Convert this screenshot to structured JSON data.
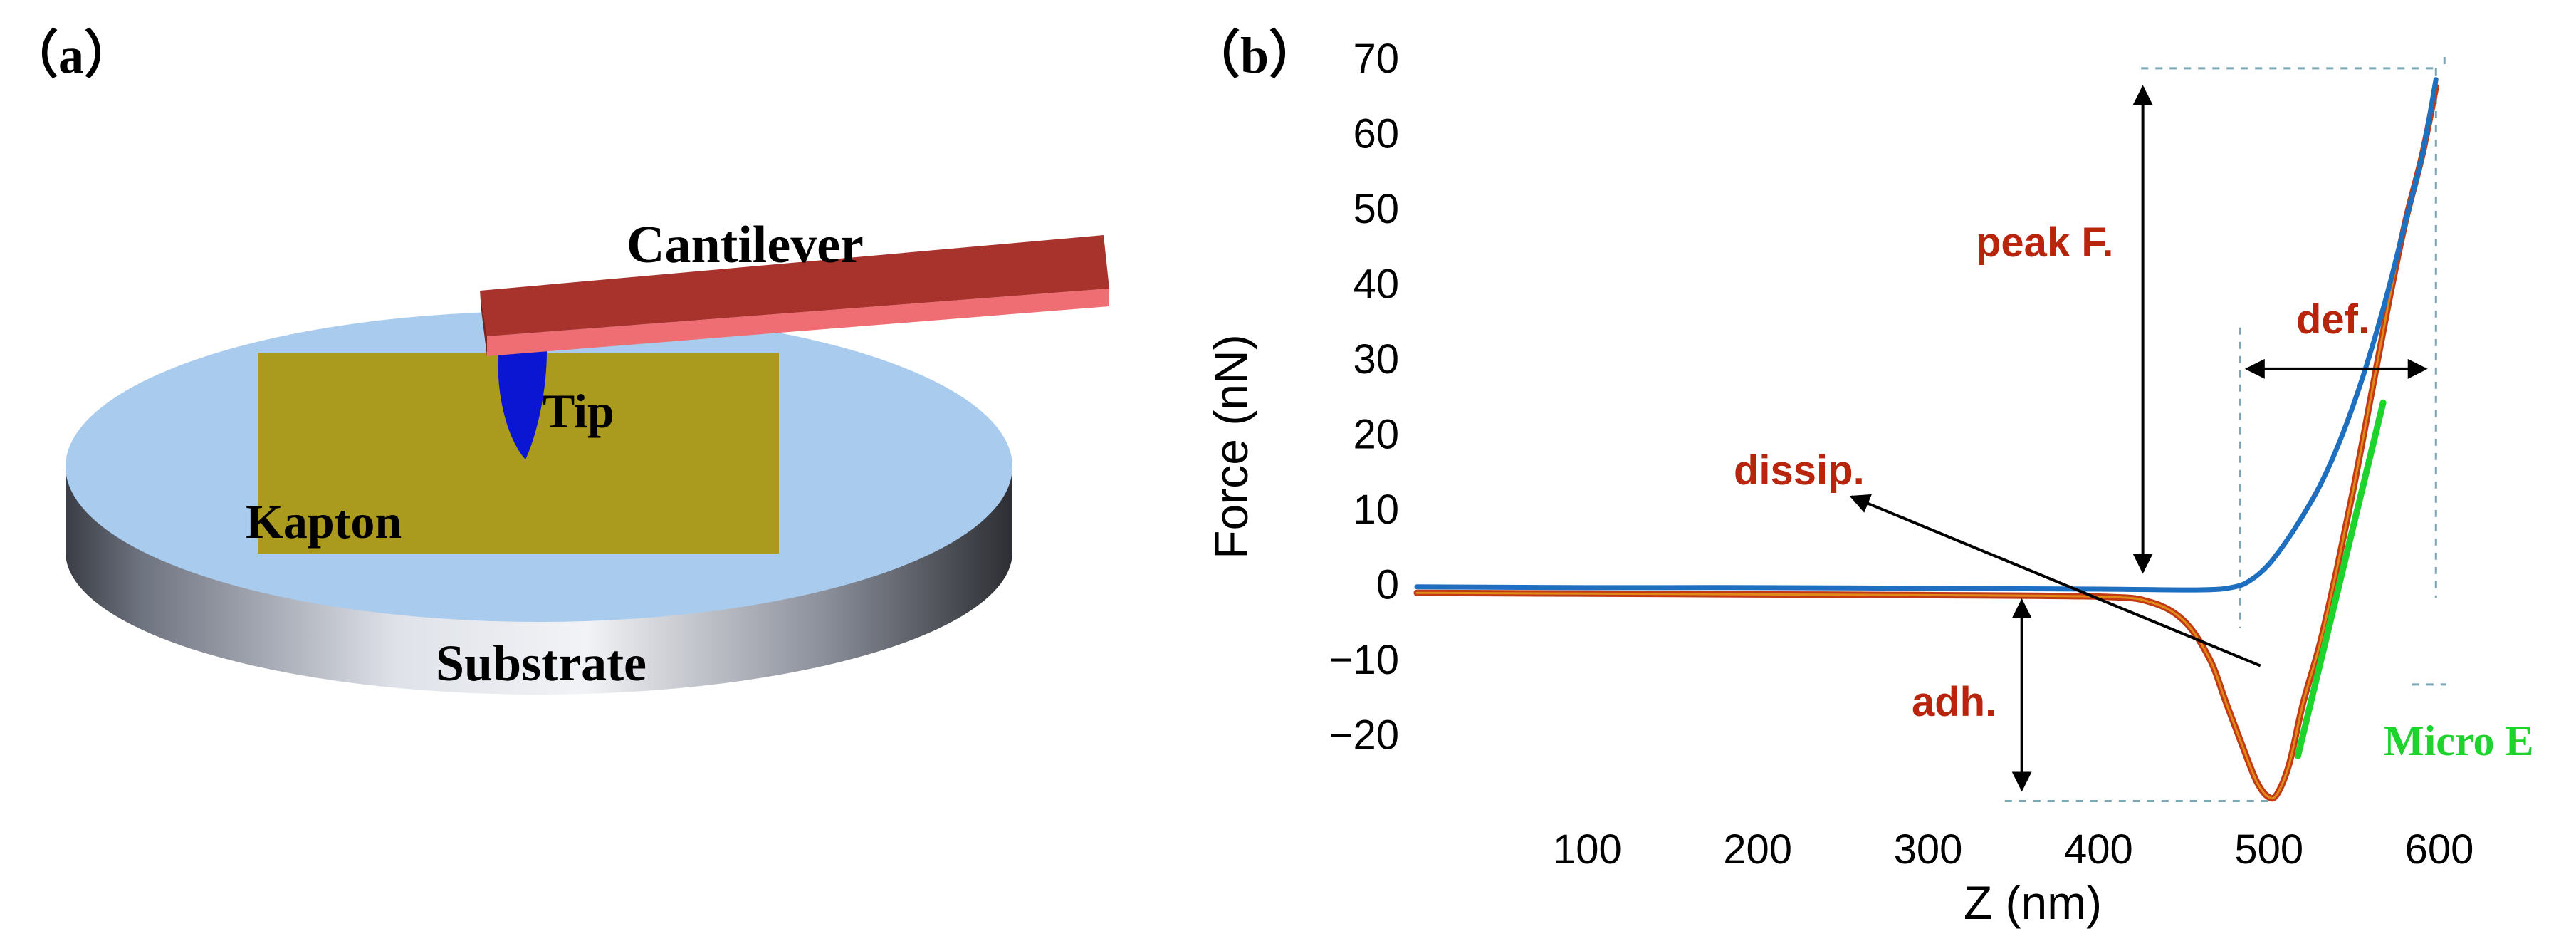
{
  "panel_a": {
    "label": "（a）",
    "cantilever_label": "Cantilever",
    "tip_label": "Tip",
    "sample_label": "Kapton",
    "substrate_label": "Substrate",
    "colors": {
      "substrate_top": "#a9cbee",
      "substrate_side_dark": "#3a3d44",
      "substrate_side_light": "#e6e8ee",
      "sample": "#aa9a1e",
      "cantilever_top": "#a8322c",
      "cantilever_edge": "#ee6e74",
      "tip": "#0a16d2"
    }
  },
  "panel_b": {
    "label": "（b）",
    "annotations": {
      "peak": "peak F.",
      "def": "def.",
      "dissip": "dissip.",
      "adh": "adh.",
      "micro_e": "Micro E"
    },
    "colors": {
      "approach": "#1f6fc0",
      "retract_outer": "#c23a14",
      "retract_inner": "#e08a18",
      "annotation_text": "#b8240c",
      "micro_e": "#1ed42c",
      "arrow": "#000000",
      "guide": "#7aa6b6"
    }
  },
  "chart_data": {
    "type": "line",
    "title": "",
    "xlabel": "Z (nm)",
    "ylabel": "Force (nN)",
    "xlim": [
      0,
      610
    ],
    "ylim": [
      -30,
      70
    ],
    "xticks": [
      100,
      200,
      300,
      400,
      500,
      600
    ],
    "yticks": [
      70,
      60,
      50,
      40,
      30,
      20,
      10,
      0,
      -10,
      -20
    ],
    "ytick_labels": [
      "70",
      "60",
      "50",
      "40",
      "30",
      "20",
      "10",
      "0",
      "−10",
      "−20"
    ],
    "grid": false,
    "legend": "none",
    "series": [
      {
        "key": "approach",
        "x": [
          0,
          100,
          200,
          300,
          400,
          460,
          480,
          490,
          500,
          510,
          520,
          530,
          540,
          550,
          560,
          570,
          580,
          590,
          598
        ],
        "y": [
          -0.5,
          -0.6,
          -0.6,
          -0.7,
          -0.8,
          -0.9,
          -0.5,
          0.5,
          2.5,
          5.5,
          9,
          13,
          18,
          24,
          31,
          39,
          48,
          57,
          67
        ]
      },
      {
        "key": "retract",
        "x": [
          0,
          100,
          200,
          300,
          400,
          430,
          450,
          465,
          475,
          485,
          493,
          500,
          505,
          512,
          520,
          530,
          540,
          550,
          560,
          570,
          580,
          590,
          598
        ],
        "y": [
          -1.3,
          -1.4,
          -1.5,
          -1.6,
          -1.8,
          -2.5,
          -5,
          -10,
          -16,
          -22,
          -26.5,
          -28.5,
          -28,
          -24,
          -16,
          -8,
          2,
          13,
          25,
          37,
          48,
          57,
          66
        ]
      },
      {
        "key": "micro_e",
        "x": [
          517,
          567
        ],
        "y": [
          -23,
          24
        ]
      }
    ]
  }
}
